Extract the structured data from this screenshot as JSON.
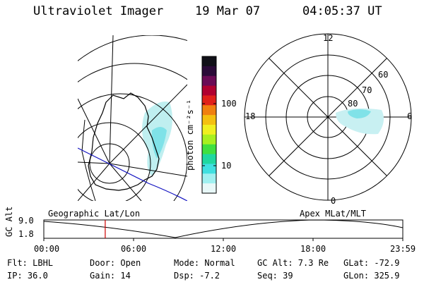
{
  "header": {
    "instrument": "Ultraviolet Imager",
    "date": "19 Mar 07",
    "time": "04:05:37 UT"
  },
  "colorbar": {
    "unit_label": "photon cm⁻²s⁻¹",
    "ticks": [
      "100",
      "10"
    ],
    "colors": [
      "#101018",
      "#2a0a38",
      "#6a0a55",
      "#b00030",
      "#e0201a",
      "#f08010",
      "#f4c010",
      "#f0f020",
      "#a8f020",
      "#40e040",
      "#20d8a0",
      "#40e0e0",
      "#a0f0f0",
      "#e8f8f8"
    ]
  },
  "polar_plot": {
    "mlt_labels": [
      "12",
      "18",
      "6",
      "0"
    ],
    "mlat_labels": [
      "60",
      "70",
      "80"
    ]
  },
  "timeline": {
    "ylabel": "GC Alt",
    "y_values": [
      "9.0",
      "1.8"
    ],
    "left_label": "Geographic Lat/Lon",
    "right_label": "Apex MLat/MLT",
    "x_ticks": [
      "00:00",
      "06:00",
      "12:00",
      "18:00",
      "23:59"
    ],
    "current_time_fraction": 0.171,
    "marker_color": "#cc0000"
  },
  "info": {
    "flt": "Flt: LBHL",
    "ip": "IP: 36.0",
    "door": "Door: Open",
    "gain": "Gain: 14",
    "mode": "Mode: Normal",
    "dsp": "Dsp:   -7.2",
    "gc_alt": "GC Alt: 7.3 Re",
    "seq": "Seq: 39",
    "glat": "GLat: -72.9",
    "glon": "GLon: 325.9"
  }
}
